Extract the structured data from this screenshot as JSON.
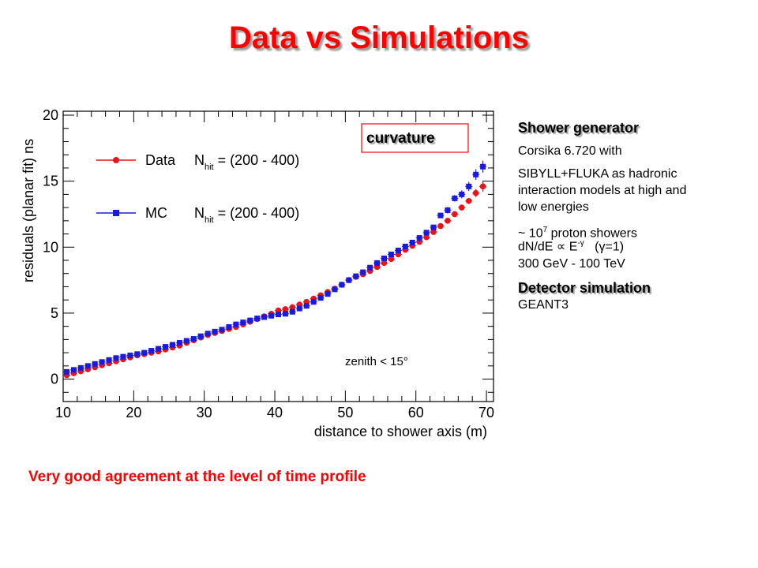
{
  "page": {
    "title": "Data vs Simulations",
    "footer": "Very good agreement at the level of time profile"
  },
  "panel": {
    "heading1": "Shower generator",
    "line1": "Corsika 6.720 with",
    "line2": "SIBYLL+FLUKA as hadronic interaction models at high and low energies",
    "line3_prefix": "~ 10",
    "line3_exp": "7",
    "line3_suffix": " proton showers",
    "line4": "dN/dE ∝ E",
    "line4_exp": "-γ",
    "line4_tail": "(γ=1)",
    "line5": "300 GeV - 100 TeV",
    "heading2": "Detector simulation",
    "line6": "GEANT3"
  },
  "colors": {
    "title": "#ff0000",
    "data": "#e8141b",
    "mc": "#1a1adc",
    "annotation_box": "#ff0000"
  },
  "chart_data": {
    "type": "scatter",
    "xlabel": "distance to shower axis (m)",
    "ylabel": "residuals (planar fit) ns",
    "xlim": [
      10,
      71
    ],
    "ylim": [
      -1.7,
      20.3
    ],
    "xticks": [
      10,
      20,
      30,
      40,
      50,
      60,
      70
    ],
    "yticks": [
      0,
      5,
      10,
      15,
      20
    ],
    "grid": false,
    "legend_position": "top-left",
    "annotation": "curvature",
    "note": "zenith < 15°",
    "legend": [
      {
        "name": "Data",
        "nhit_label": "N",
        "nhit_sub": "hit",
        "range": " = (200 - 400)"
      },
      {
        "name": "MC",
        "nhit_label": "N",
        "nhit_sub": "hit",
        "range": " = (200 - 400)"
      }
    ],
    "series": [
      {
        "name": "Data",
        "marker": "circle",
        "x": [
          10.5,
          11.5,
          12.5,
          13.5,
          14.5,
          15.5,
          16.5,
          17.5,
          18.5,
          19.5,
          20.5,
          21.5,
          22.5,
          23.5,
          24.5,
          25.5,
          26.5,
          27.5,
          28.5,
          29.5,
          30.5,
          31.5,
          32.5,
          33.5,
          34.5,
          35.5,
          36.5,
          37.5,
          38.5,
          39.5,
          40.5,
          41.5,
          42.5,
          43.5,
          44.5,
          45.5,
          46.5,
          47.5,
          48.5,
          49.5,
          50.5,
          51.5,
          52.5,
          53.5,
          54.5,
          55.5,
          56.5,
          57.5,
          58.5,
          59.5,
          60.5,
          61.5,
          62.5,
          63.5,
          64.5,
          65.5,
          66.5,
          67.5,
          68.5,
          69.5
        ],
        "y": [
          0.3,
          0.45,
          0.6,
          0.75,
          0.9,
          1.05,
          1.2,
          1.35,
          1.5,
          1.65,
          1.8,
          1.9,
          2.0,
          2.1,
          2.25,
          2.4,
          2.55,
          2.75,
          2.95,
          3.15,
          3.35,
          3.5,
          3.65,
          3.8,
          3.95,
          4.15,
          4.35,
          4.55,
          4.75,
          4.95,
          5.2,
          5.3,
          5.45,
          5.65,
          5.85,
          6.1,
          6.35,
          6.6,
          6.85,
          7.15,
          7.5,
          7.75,
          7.95,
          8.2,
          8.5,
          8.8,
          9.1,
          9.45,
          9.8,
          10.1,
          10.4,
          10.75,
          11.15,
          11.6,
          12.0,
          12.5,
          13.0,
          13.5,
          14.1,
          14.6
        ],
        "errors": [
          0.05,
          0.05,
          0.05,
          0.05,
          0.05,
          0.05,
          0.05,
          0.05,
          0.05,
          0.05,
          0.05,
          0.05,
          0.05,
          0.05,
          0.05,
          0.05,
          0.05,
          0.05,
          0.05,
          0.05,
          0.05,
          0.05,
          0.05,
          0.05,
          0.05,
          0.05,
          0.05,
          0.05,
          0.05,
          0.05,
          0.05,
          0.05,
          0.05,
          0.05,
          0.05,
          0.05,
          0.05,
          0.05,
          0.05,
          0.05,
          0.05,
          0.05,
          0.05,
          0.05,
          0.05,
          0.05,
          0.05,
          0.05,
          0.05,
          0.05,
          0.05,
          0.05,
          0.05,
          0.05,
          0.1,
          0.1,
          0.1,
          0.15,
          0.3,
          0.4
        ]
      },
      {
        "name": "MC",
        "marker": "square",
        "x": [
          10.5,
          11.5,
          12.5,
          13.5,
          14.5,
          15.5,
          16.5,
          17.5,
          18.5,
          19.5,
          20.5,
          21.5,
          22.5,
          23.5,
          24.5,
          25.5,
          26.5,
          27.5,
          28.5,
          29.5,
          30.5,
          31.5,
          32.5,
          33.5,
          34.5,
          35.5,
          36.5,
          37.5,
          38.5,
          39.5,
          40.5,
          41.5,
          42.5,
          43.5,
          44.5,
          45.5,
          46.5,
          47.5,
          48.5,
          49.5,
          50.5,
          51.5,
          52.5,
          53.5,
          54.5,
          55.5,
          56.5,
          57.5,
          58.5,
          59.5,
          60.5,
          61.5,
          62.5,
          63.5,
          64.5,
          65.5,
          66.5,
          67.5,
          68.5,
          69.5
        ],
        "y": [
          0.55,
          0.7,
          0.85,
          1.0,
          1.15,
          1.3,
          1.45,
          1.6,
          1.7,
          1.8,
          1.9,
          2.0,
          2.15,
          2.3,
          2.45,
          2.6,
          2.75,
          2.9,
          3.05,
          3.25,
          3.45,
          3.6,
          3.75,
          3.95,
          4.15,
          4.3,
          4.45,
          4.6,
          4.7,
          4.8,
          4.9,
          4.95,
          5.1,
          5.35,
          5.55,
          5.85,
          6.15,
          6.45,
          6.8,
          7.15,
          7.5,
          7.8,
          8.1,
          8.45,
          8.8,
          9.15,
          9.45,
          9.75,
          10.05,
          10.35,
          10.7,
          11.1,
          11.5,
          12.4,
          12.8,
          13.7,
          14.0,
          14.6,
          15.5,
          16.1
        ],
        "errors": [
          0.05,
          0.05,
          0.05,
          0.05,
          0.05,
          0.05,
          0.05,
          0.05,
          0.05,
          0.05,
          0.05,
          0.05,
          0.05,
          0.05,
          0.05,
          0.05,
          0.05,
          0.05,
          0.05,
          0.05,
          0.05,
          0.05,
          0.05,
          0.05,
          0.05,
          0.05,
          0.05,
          0.05,
          0.05,
          0.05,
          0.05,
          0.05,
          0.05,
          0.05,
          0.05,
          0.05,
          0.05,
          0.05,
          0.05,
          0.05,
          0.05,
          0.05,
          0.05,
          0.05,
          0.05,
          0.05,
          0.05,
          0.05,
          0.1,
          0.1,
          0.1,
          0.15,
          0.15,
          0.2,
          0.25,
          0.25,
          0.3,
          0.35,
          0.4,
          0.45
        ]
      }
    ]
  }
}
